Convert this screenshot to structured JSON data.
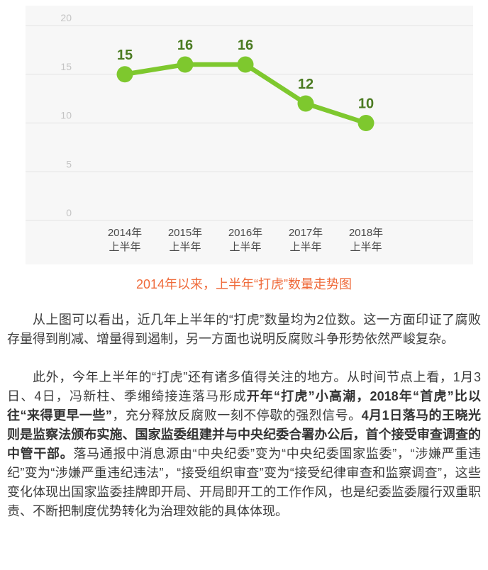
{
  "chart_data": {
    "type": "line",
    "title": "",
    "caption": "2014年以来，上半年“打虎”数量走势图",
    "categories": [
      {
        "line1": "2014年",
        "line2": "上半年"
      },
      {
        "line1": "2015年",
        "line2": "上半年"
      },
      {
        "line1": "2016年",
        "line2": "上半年"
      },
      {
        "line1": "2017年",
        "line2": "上半年"
      },
      {
        "line1": "2018年",
        "line2": "上半年"
      }
    ],
    "series": [
      {
        "name": "上半年打虎数量",
        "values": [
          15,
          16,
          16,
          12,
          10
        ]
      }
    ],
    "values": [
      15,
      16,
      16,
      12,
      10
    ],
    "y_ticks": [
      0,
      5,
      10,
      15,
      20
    ],
    "ylim": [
      0,
      22
    ],
    "grid": true,
    "legend_position": "none",
    "colors": {
      "line": "#7ec82e",
      "point": "#7ec82e",
      "point_label": "#4b7b22",
      "panel_bg": "#f7f7f7",
      "gridline": "#e3e3e3",
      "y_tick": "#c4c4c4",
      "x_label": "#4a4a4a",
      "caption": "#ef6a3a"
    }
  },
  "article": {
    "paragraphs": [
      {
        "segments": [
          {
            "bold": false,
            "text": "从上图可以看出，近几年上半年的“打虎”数量均为2位数。这一方面印证了腐败存量得到削减、增量得到遏制，另一方面也说明反腐败斗争形势依然严峻复杂。"
          }
        ]
      },
      {
        "segments": [
          {
            "bold": false,
            "text": "此外，今年上半年的“打虎”还有诸多值得关注的地方。从时间节点上看，1月3日、4日，冯新柱、季缃绮接连落马形成"
          },
          {
            "bold": true,
            "text": "开年“打虎”小高潮，2018年“首虎”比以往“来得更早一些”"
          },
          {
            "bold": false,
            "text": "，充分释放反腐败一刻不停歇的强烈信号。"
          },
          {
            "bold": true,
            "text": "4月1日落马的王晓光则是监察法颁布实施、国家监委组建并与中央纪委合署办公后，首个接受审查调查的中管干部。"
          },
          {
            "bold": false,
            "text": "落马通报中消息源由“中央纪委”变为“中央纪委国家监委”，“涉嫌严重违纪”变为“涉嫌严重违纪违法”，“接受组织审查”变为“接受纪律审查和监察调查”，这些变化体现出国家监委挂牌即开局、开局即开工的工作作风，也是纪委监委履行双重职责、不断把制度优势转化为治理效能的具体体现。"
          }
        ]
      }
    ]
  }
}
